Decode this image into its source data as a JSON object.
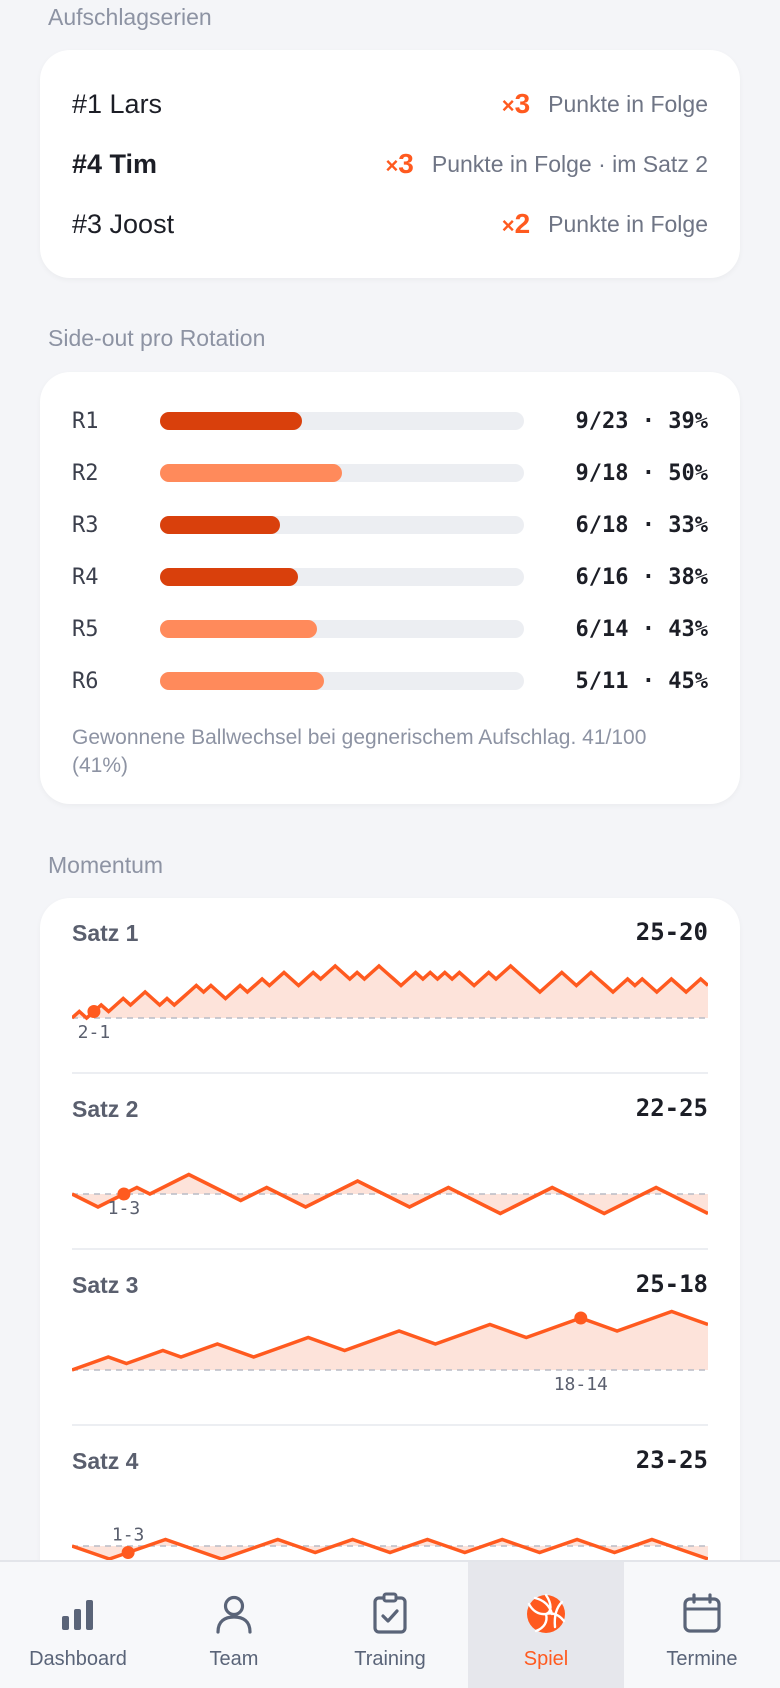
{
  "serve_streaks": {
    "title": "Aufschlagserien",
    "items": [
      {
        "player": "#1 Lars",
        "bold": false,
        "mult_x": "×",
        "mult_n": "3",
        "detail": "Punkte in Folge"
      },
      {
        "player": "#4 Tim",
        "bold": true,
        "mult_x": "×",
        "mult_n": "3",
        "detail": "Punkte in Folge · im Satz 2"
      },
      {
        "player": "#3 Joost",
        "bold": false,
        "mult_x": "×",
        "mult_n": "2",
        "detail": "Punkte in Folge"
      }
    ]
  },
  "sideout": {
    "title": "Side-out pro Rotation",
    "rows": [
      {
        "label": "R1",
        "value": "9/23 · 39%",
        "pct": 0.39,
        "color": "#d9400c"
      },
      {
        "label": "R2",
        "value": "9/18 · 50%",
        "pct": 0.5,
        "color": "#ff8a5b"
      },
      {
        "label": "R3",
        "value": "6/18 · 33%",
        "pct": 0.33,
        "color": "#d9400c"
      },
      {
        "label": "R4",
        "value": "6/16 · 38%",
        "pct": 0.38,
        "color": "#d9400c"
      },
      {
        "label": "R5",
        "value": "6/14 · 43%",
        "pct": 0.43,
        "color": "#ff8a5b"
      },
      {
        "label": "R6",
        "value": "5/11 · 45%",
        "pct": 0.45,
        "color": "#ff8a5b"
      }
    ],
    "note": "Gewonnene Ballwechsel bei gegnerischem Aufschlag. 41/100 (41%)"
  },
  "momentum": {
    "title": "Momentum",
    "line_color": "#ff5a1f",
    "fill_color": "#fde3da",
    "sets": [
      {
        "label": "Satz 1",
        "score": "25-20",
        "marker_label": "2-1",
        "diffs": [
          0,
          1,
          0,
          1,
          2,
          1,
          2,
          3,
          2,
          3,
          4,
          3,
          2,
          3,
          2,
          3,
          4,
          5,
          4,
          5,
          4,
          3,
          4,
          5,
          4,
          5,
          6,
          5,
          6,
          7,
          6,
          5,
          6,
          7,
          6,
          7,
          8,
          7,
          6,
          7,
          6,
          7,
          8,
          7,
          6,
          5,
          6,
          7,
          6,
          7,
          6,
          7,
          6,
          7,
          6,
          5,
          6,
          7,
          6,
          7,
          8,
          7,
          6,
          5,
          4,
          5,
          6,
          7,
          6,
          5,
          6,
          7,
          6,
          5,
          4,
          5,
          6,
          5,
          6,
          5,
          4,
          5,
          6,
          5,
          4,
          5,
          6,
          5
        ],
        "marker_index": 3
      },
      {
        "label": "Satz 2",
        "score": "22-25",
        "marker_label": "1-3",
        "diffs": [
          0,
          -1,
          -2,
          -1,
          0,
          1,
          0,
          1,
          2,
          3,
          2,
          1,
          0,
          -1,
          0,
          1,
          0,
          -1,
          -2,
          -1,
          0,
          1,
          2,
          1,
          0,
          -1,
          -2,
          -1,
          0,
          1,
          0,
          -1,
          -2,
          -3,
          -2,
          -1,
          0,
          1,
          0,
          -1,
          -2,
          -3,
          -2,
          -1,
          0,
          1,
          0,
          -1,
          -2,
          -3
        ],
        "marker_index": 4
      },
      {
        "label": "Satz 3",
        "score": "25-18",
        "marker_label": "18-14",
        "diffs": [
          0,
          1,
          2,
          1,
          2,
          3,
          2,
          3,
          4,
          3,
          2,
          3,
          4,
          5,
          4,
          3,
          4,
          5,
          6,
          5,
          4,
          5,
          6,
          7,
          6,
          5,
          6,
          7,
          8,
          7,
          6,
          7,
          8,
          9,
          8,
          7
        ],
        "marker_index": 28
      },
      {
        "label": "Satz 4",
        "score": "23-25",
        "marker_label": "1-3",
        "diffs": [
          0,
          -1,
          -2,
          -1,
          0,
          1,
          0,
          -1,
          -2,
          -1,
          0,
          1,
          0,
          -1,
          0,
          1,
          0,
          -1,
          0,
          1,
          0,
          -1,
          0,
          1,
          0,
          -1,
          0,
          1,
          0,
          -1,
          0,
          1,
          0,
          -1,
          -2
        ],
        "marker_index": 3
      }
    ]
  },
  "tabs": [
    {
      "label": "Dashboard",
      "icon": "bar-chart-icon",
      "active": false
    },
    {
      "label": "Team",
      "icon": "person-icon",
      "active": false
    },
    {
      "label": "Training",
      "icon": "checklist-icon",
      "active": false
    },
    {
      "label": "Spiel",
      "icon": "volleyball-icon",
      "active": true
    },
    {
      "label": "Termine",
      "icon": "calendar-icon",
      "active": false
    }
  ]
}
